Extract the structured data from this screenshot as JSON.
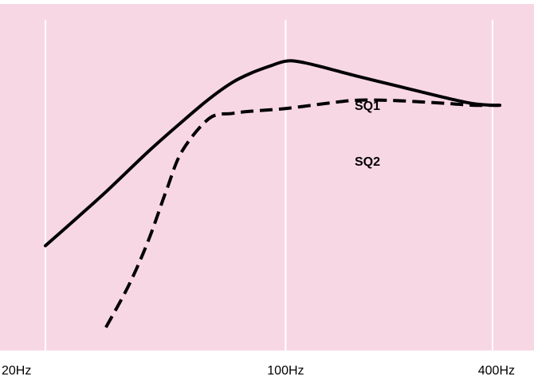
{
  "chart_data": {
    "type": "line",
    "title": "",
    "xlabel": "",
    "ylabel": "",
    "x_scale": "log",
    "xlim": [
      20,
      400
    ],
    "ylim": [
      0,
      10
    ],
    "grid": {
      "vertical": true,
      "horizontal": false
    },
    "x_ticks": [
      {
        "value": 20,
        "label": "20Hz"
      },
      {
        "value": 100,
        "label": "100Hz"
      },
      {
        "value": 400,
        "label": "400Hz"
      }
    ],
    "series": [
      {
        "name": "SQ1",
        "line_style": "solid",
        "points": [
          [
            20,
            2.6
          ],
          [
            25,
            3.5
          ],
          [
            30,
            4.25
          ],
          [
            40,
            5.5
          ],
          [
            50,
            6.4
          ],
          [
            60,
            7.1
          ],
          [
            70,
            7.6
          ],
          [
            80,
            7.9
          ],
          [
            90,
            8.1
          ],
          [
            100,
            8.25
          ],
          [
            110,
            8.23
          ],
          [
            130,
            8.05
          ],
          [
            160,
            7.8
          ],
          [
            200,
            7.55
          ],
          [
            250,
            7.3
          ],
          [
            300,
            7.1
          ],
          [
            350,
            6.95
          ],
          [
            400,
            6.9
          ],
          [
            420,
            6.9
          ]
        ]
      },
      {
        "name": "SQ2",
        "line_style": "dashed",
        "points": [
          [
            30,
            0.1
          ],
          [
            35,
            1.4
          ],
          [
            40,
            2.8
          ],
          [
            45,
            4.3
          ],
          [
            50,
            5.5
          ],
          [
            60,
            6.5
          ],
          [
            70,
            6.65
          ],
          [
            80,
            6.72
          ],
          [
            100,
            6.8
          ],
          [
            130,
            6.95
          ],
          [
            160,
            7.05
          ],
          [
            200,
            7.05
          ],
          [
            250,
            7.0
          ],
          [
            300,
            6.95
          ],
          [
            350,
            6.9
          ],
          [
            400,
            6.9
          ],
          [
            420,
            6.9
          ]
        ]
      }
    ],
    "colors": {
      "background": "#f8d7e5",
      "gridline": "#ffffff",
      "line": "#000000"
    }
  }
}
